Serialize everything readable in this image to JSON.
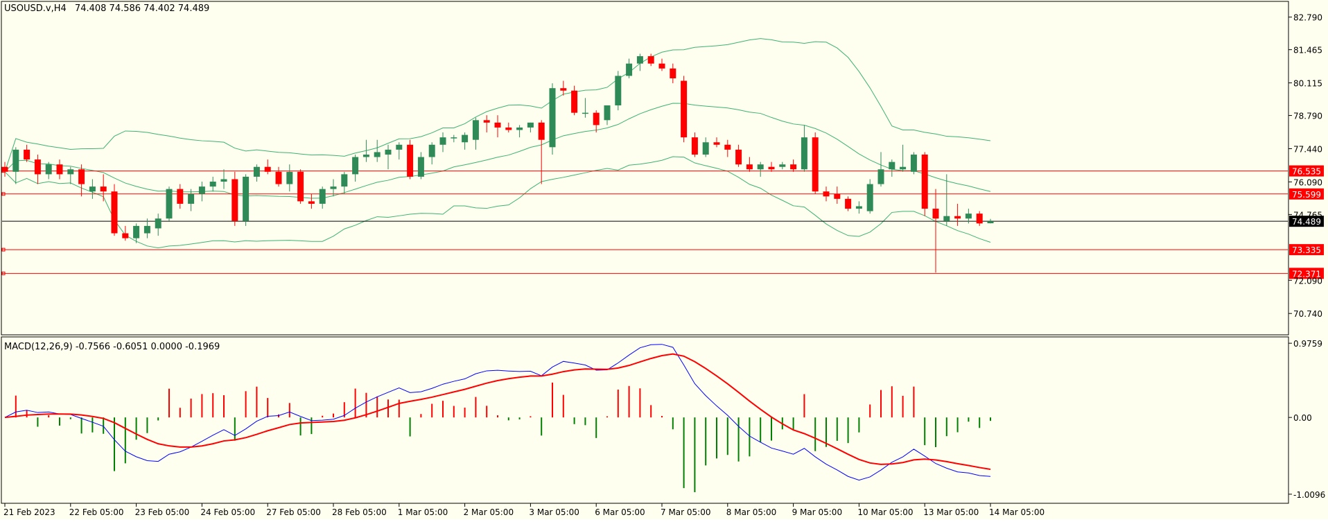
{
  "colors": {
    "background": "#fffff0",
    "bull": "#2e8b57",
    "bear": "#ff0000",
    "band": "#3cb371",
    "level_line": "#ff0000",
    "price_line": "#000000",
    "macd_line": "#0000ff",
    "signal_line": "#ff0000",
    "hist_pos": "#ff0000",
    "hist_neg": "#008000"
  },
  "header": {
    "symbol_tf": "USOUSD.v,H4",
    "ohlc": "74.408 74.586 74.402 74.489"
  },
  "macd_header": {
    "label": "MACD(12,26,9) -0.7566 -0.6051 0.0000 -0.1969"
  },
  "chart_data": [
    {
      "type": "candlestick",
      "symbol": "USOUSD.v",
      "timeframe": "H4",
      "ylim": [
        69.9,
        83.4
      ],
      "price_axis_labels": [
        "82.790",
        "81.465",
        "80.115",
        "78.790",
        "77.440",
        "76.090",
        "74.765",
        "72.090",
        "70.740"
      ],
      "price_axis_values": [
        82.79,
        81.465,
        80.115,
        78.79,
        77.44,
        76.09,
        74.765,
        72.09,
        70.74
      ],
      "horizontal_levels": [
        {
          "value": 76.535,
          "label": "76.535"
        },
        {
          "value": 75.599,
          "label": "75.599"
        },
        {
          "value": 73.335,
          "label": "73.335"
        },
        {
          "value": 72.371,
          "label": "72.371"
        }
      ],
      "current_price": {
        "value": 74.489,
        "label": "74.489"
      },
      "x_labels": [
        "21 Feb 2023",
        "22 Feb 05:00",
        "23 Feb 05:00",
        "24 Feb 05:00",
        "27 Feb 05:00",
        "28 Feb 05:00",
        "1 Mar 05:00",
        "2 Mar 05:00",
        "3 Mar 05:00",
        "6 Mar 05:00",
        "7 Mar 05:00",
        "8 Mar 05:00",
        "9 Mar 05:00",
        "10 Mar 05:00",
        "13 Mar 05:00",
        "14 Mar 05:00"
      ],
      "x_label_bar_index": [
        0,
        6,
        12,
        18,
        24,
        30,
        36,
        42,
        48,
        54,
        60,
        66,
        72,
        78,
        84,
        90
      ],
      "candles": [
        [
          76.7,
          76.9,
          76.3,
          76.5
        ],
        [
          76.5,
          77.5,
          76.0,
          77.4
        ],
        [
          77.4,
          77.6,
          76.9,
          77.0
        ],
        [
          77.0,
          77.2,
          76.0,
          76.4
        ],
        [
          76.4,
          76.9,
          76.2,
          76.8
        ],
        [
          76.8,
          77.0,
          76.2,
          76.4
        ],
        [
          76.4,
          76.7,
          76.0,
          76.6
        ],
        [
          76.6,
          76.8,
          75.5,
          76.0
        ],
        [
          75.7,
          76.2,
          75.4,
          75.9
        ],
        [
          75.9,
          76.4,
          75.3,
          75.7
        ],
        [
          75.7,
          76.0,
          73.9,
          74.0
        ],
        [
          74.0,
          74.3,
          73.7,
          73.8
        ],
        [
          73.8,
          74.4,
          73.6,
          74.3
        ],
        [
          74.0,
          74.6,
          73.8,
          74.3
        ],
        [
          74.2,
          74.8,
          73.9,
          74.6
        ],
        [
          74.6,
          75.9,
          74.5,
          75.8
        ],
        [
          75.8,
          76.0,
          75.0,
          75.2
        ],
        [
          75.2,
          75.8,
          74.9,
          75.6
        ],
        [
          75.6,
          76.1,
          75.3,
          75.9
        ],
        [
          75.9,
          76.3,
          75.7,
          76.1
        ],
        [
          76.1,
          76.6,
          75.8,
          76.2
        ],
        [
          76.2,
          76.5,
          74.3,
          74.5
        ],
        [
          74.5,
          76.4,
          74.3,
          76.3
        ],
        [
          76.3,
          76.8,
          76.1,
          76.7
        ],
        [
          76.7,
          77.0,
          76.4,
          76.5
        ],
        [
          76.5,
          76.7,
          75.9,
          76.0
        ],
        [
          76.0,
          76.8,
          75.7,
          76.5
        ],
        [
          76.5,
          76.6,
          75.2,
          75.3
        ],
        [
          75.3,
          75.6,
          75.0,
          75.2
        ],
        [
          75.2,
          75.9,
          75.0,
          75.8
        ],
        [
          75.8,
          76.2,
          75.5,
          75.9
        ],
        [
          75.9,
          76.5,
          75.6,
          76.4
        ],
        [
          76.4,
          77.2,
          76.1,
          77.1
        ],
        [
          77.1,
          77.8,
          76.9,
          77.2
        ],
        [
          77.1,
          77.8,
          76.9,
          77.3
        ],
        [
          77.2,
          77.6,
          76.6,
          77.4
        ],
        [
          77.4,
          77.7,
          77.0,
          77.6
        ],
        [
          77.6,
          77.8,
          76.2,
          76.3
        ],
        [
          76.3,
          77.3,
          76.2,
          77.1
        ],
        [
          77.1,
          77.7,
          76.8,
          77.6
        ],
        [
          77.6,
          78.1,
          77.3,
          77.9
        ],
        [
          77.9,
          78.0,
          77.7,
          77.9
        ],
        [
          77.7,
          78.1,
          77.4,
          78.0
        ],
        [
          77.8,
          78.7,
          77.4,
          78.6
        ],
        [
          78.6,
          78.8,
          78.1,
          78.5
        ],
        [
          78.5,
          78.8,
          77.9,
          78.3
        ],
        [
          78.3,
          78.5,
          78.1,
          78.2
        ],
        [
          78.2,
          78.4,
          77.9,
          78.3
        ],
        [
          78.3,
          78.5,
          78.1,
          78.5
        ],
        [
          78.5,
          78.6,
          76.0,
          77.8
        ],
        [
          77.5,
          80.1,
          77.2,
          79.9
        ],
        [
          79.9,
          80.2,
          79.6,
          79.8
        ],
        [
          79.8,
          80.0,
          78.8,
          78.9
        ],
        [
          78.9,
          79.5,
          78.7,
          78.9
        ],
        [
          78.9,
          79.0,
          78.1,
          78.4
        ],
        [
          78.6,
          79.2,
          78.4,
          79.2
        ],
        [
          79.2,
          80.6,
          79.0,
          80.4
        ],
        [
          80.4,
          81.1,
          80.3,
          80.9
        ],
        [
          80.9,
          81.3,
          80.6,
          81.2
        ],
        [
          81.2,
          81.3,
          80.8,
          80.9
        ],
        [
          80.9,
          81.1,
          80.6,
          80.7
        ],
        [
          80.7,
          80.9,
          80.1,
          80.3
        ],
        [
          80.2,
          80.4,
          77.7,
          77.9
        ],
        [
          77.9,
          78.1,
          77.1,
          77.2
        ],
        [
          77.2,
          77.9,
          77.1,
          77.7
        ],
        [
          77.7,
          77.9,
          77.5,
          77.6
        ],
        [
          77.6,
          77.8,
          77.1,
          77.4
        ],
        [
          77.4,
          77.6,
          76.7,
          76.8
        ],
        [
          76.8,
          77.1,
          76.5,
          76.6
        ],
        [
          76.6,
          76.9,
          76.3,
          76.8
        ],
        [
          76.7,
          76.9,
          76.5,
          76.6
        ],
        [
          76.7,
          76.9,
          76.6,
          76.8
        ],
        [
          76.8,
          77.0,
          76.5,
          76.6
        ],
        [
          76.6,
          78.4,
          76.5,
          77.9
        ],
        [
          77.9,
          78.1,
          75.6,
          75.7
        ],
        [
          75.7,
          75.9,
          75.3,
          75.5
        ],
        [
          75.6,
          75.9,
          75.2,
          75.4
        ],
        [
          75.4,
          75.5,
          74.9,
          75.0
        ],
        [
          75.0,
          75.3,
          74.8,
          75.1
        ],
        [
          74.9,
          76.2,
          74.8,
          76.0
        ],
        [
          76.0,
          77.3,
          75.9,
          76.6
        ],
        [
          76.6,
          77.0,
          76.3,
          76.9
        ],
        [
          76.6,
          77.6,
          76.5,
          76.7
        ],
        [
          76.5,
          77.3,
          76.4,
          77.2
        ],
        [
          77.2,
          77.3,
          74.7,
          75.0
        ],
        [
          75.0,
          75.8,
          72.4,
          74.6
        ],
        [
          74.5,
          76.4,
          74.3,
          74.7
        ],
        [
          74.7,
          75.2,
          74.3,
          74.6
        ],
        [
          74.6,
          75.0,
          74.4,
          74.8
        ],
        [
          74.8,
          74.9,
          74.3,
          74.4
        ],
        [
          74.408,
          74.586,
          74.402,
          74.489
        ]
      ]
    },
    {
      "type": "line",
      "indicator": "MACD(12,26,9)",
      "ylim": [
        -1.12,
        1.05
      ],
      "axis_labels": [
        "0.9759",
        "0.00",
        "-1.0096"
      ],
      "axis_values": [
        0.9759,
        0.0,
        -1.0096
      ],
      "values": {
        "macd": -0.7566,
        "signal": -0.6051,
        "zero": 0.0,
        "histogram": -0.1969
      }
    }
  ]
}
